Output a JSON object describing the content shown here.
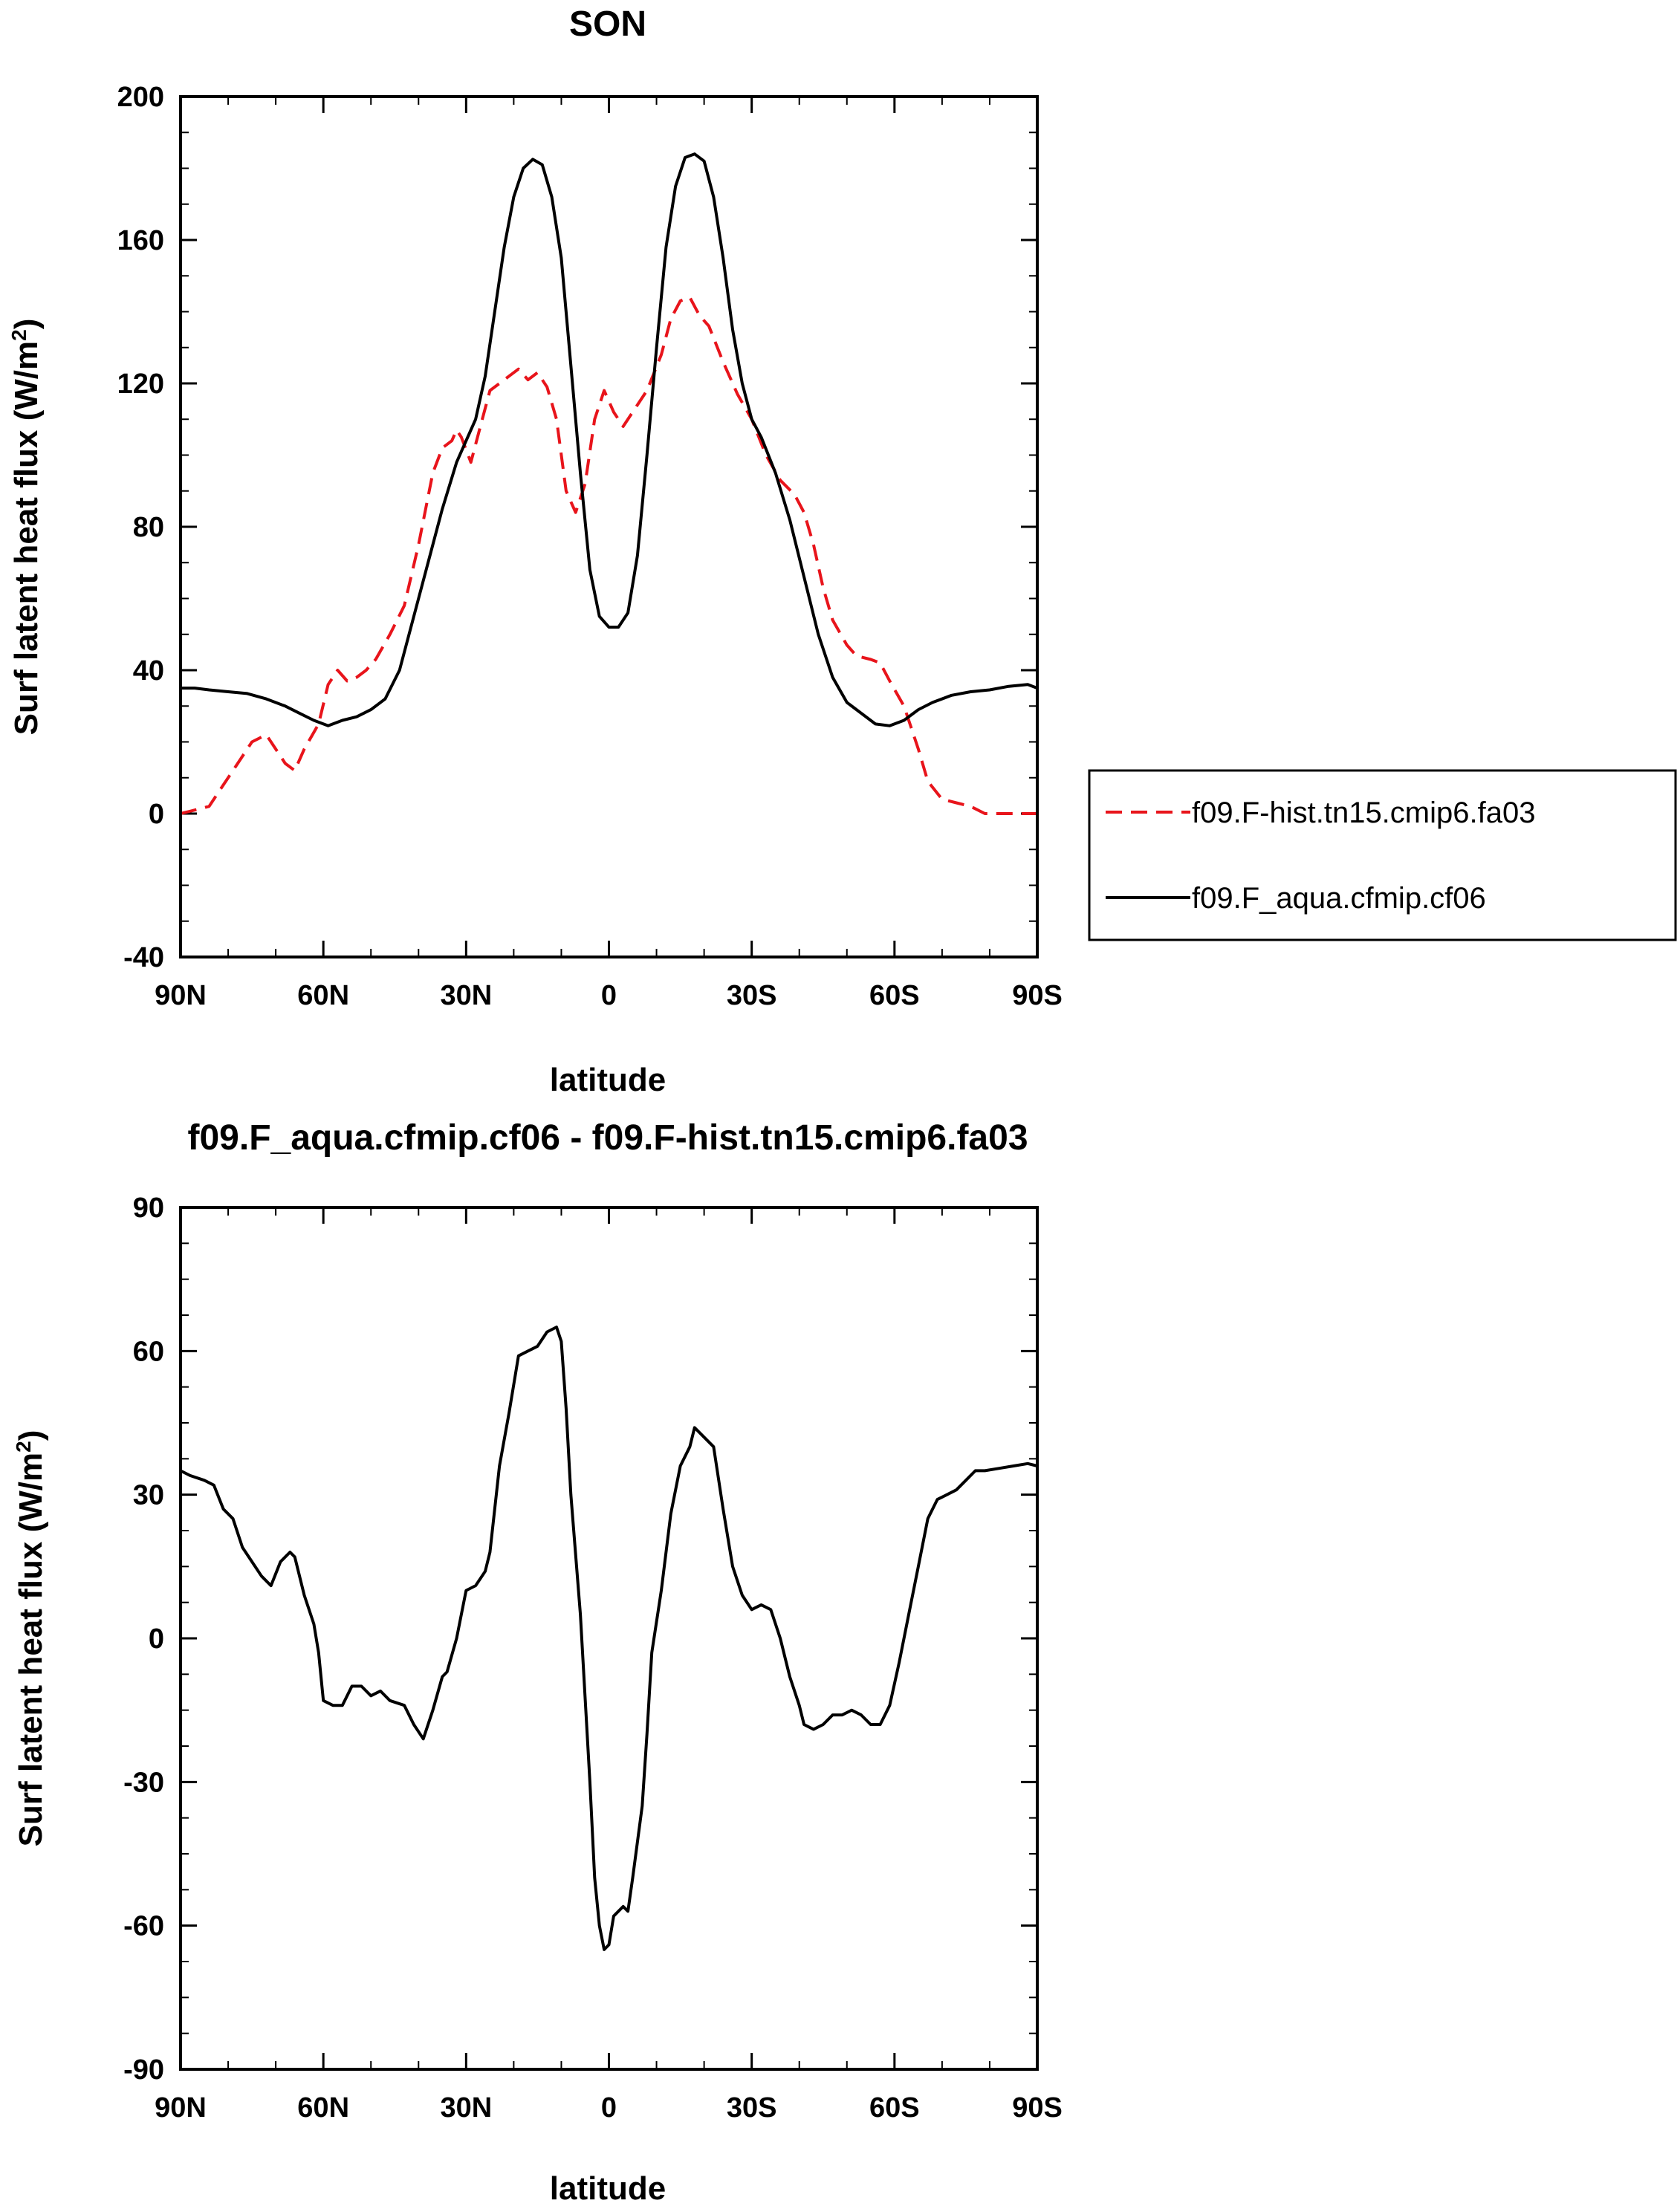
{
  "chart_data": [
    {
      "type": "line",
      "title": "SON",
      "xlabel": "latitude",
      "ylabel": "Surf latent heat flux (W/m",
      "ylabel_sup": "2",
      "ylabel_close": ")",
      "xlim": [
        90,
        -90
      ],
      "ylim": [
        -40,
        200
      ],
      "x_ticks": [
        90,
        60,
        30,
        0,
        -30,
        -60,
        -90
      ],
      "x_tick_labels": [
        "90N",
        "60N",
        "30N",
        "0",
        "30S",
        "60S",
        "90S"
      ],
      "y_ticks": [
        -40,
        0,
        40,
        80,
        120,
        160,
        200
      ],
      "y_tick_labels": [
        "-40",
        "0",
        "40",
        "80",
        "120",
        "160",
        "200"
      ],
      "legend_position": "right",
      "series": [
        {
          "name": "f09.F-hist.tn15.cmip6.fa03",
          "color": "#e8141b",
          "dash": "dashed",
          "points": [
            [
              90,
              0
            ],
            [
              87,
              1
            ],
            [
              84,
              2
            ],
            [
              81,
              8
            ],
            [
              78,
              14
            ],
            [
              75,
              20
            ],
            [
              72,
              22
            ],
            [
              70,
              18
            ],
            [
              68,
              14
            ],
            [
              66,
              12
            ],
            [
              64,
              18
            ],
            [
              61,
              25
            ],
            [
              59,
              36
            ],
            [
              57,
              40
            ],
            [
              55,
              37
            ],
            [
              53,
              38
            ],
            [
              51,
              40
            ],
            [
              49,
              43
            ],
            [
              46,
              50
            ],
            [
              43,
              58
            ],
            [
              40,
              75
            ],
            [
              37,
              95
            ],
            [
              35,
              102
            ],
            [
              33,
              104
            ],
            [
              32,
              107
            ],
            [
              31,
              105
            ],
            [
              29,
              98
            ],
            [
              27,
              108
            ],
            [
              25,
              118
            ],
            [
              23,
              120
            ],
            [
              21,
              122
            ],
            [
              19,
              124
            ],
            [
              17,
              121
            ],
            [
              15,
              123
            ],
            [
              13,
              119
            ],
            [
              11,
              110
            ],
            [
              9,
              90
            ],
            [
              7,
              84
            ],
            [
              5,
              92
            ],
            [
              3,
              110
            ],
            [
              1,
              118
            ],
            [
              -1,
              112
            ],
            [
              -3,
              108
            ],
            [
              -5,
              112
            ],
            [
              -8,
              118
            ],
            [
              -11,
              128
            ],
            [
              -13,
              138
            ],
            [
              -15,
              143
            ],
            [
              -17,
              144
            ],
            [
              -19,
              139
            ],
            [
              -21,
              136
            ],
            [
              -24,
              126
            ],
            [
              -27,
              117
            ],
            [
              -30,
              110
            ],
            [
              -33,
              100
            ],
            [
              -36,
              93
            ],
            [
              -39,
              89
            ],
            [
              -41,
              84
            ],
            [
              -43,
              75
            ],
            [
              -45,
              63
            ],
            [
              -47,
              54
            ],
            [
              -50,
              47
            ],
            [
              -52,
              44
            ],
            [
              -55,
              43
            ],
            [
              -57,
              42
            ],
            [
              -59,
              37
            ],
            [
              -62,
              30
            ],
            [
              -65,
              18
            ],
            [
              -67,
              9
            ],
            [
              -70,
              4
            ],
            [
              -73,
              3
            ],
            [
              -76,
              2
            ],
            [
              -79,
              0
            ],
            [
              -82,
              0
            ],
            [
              -85,
              0
            ],
            [
              -88,
              0
            ],
            [
              -90,
              0
            ]
          ]
        },
        {
          "name": "f09.F_aqua.cfmip.cf06",
          "color": "#000000",
          "dash": "solid",
          "points": [
            [
              90,
              35
            ],
            [
              87,
              35
            ],
            [
              84,
              34.5
            ],
            [
              80,
              34
            ],
            [
              76,
              33.5
            ],
            [
              72,
              32
            ],
            [
              68,
              30
            ],
            [
              65,
              28
            ],
            [
              62,
              26
            ],
            [
              59,
              24.5
            ],
            [
              56,
              26
            ],
            [
              53,
              27
            ],
            [
              50,
              29
            ],
            [
              47,
              32
            ],
            [
              44,
              40
            ],
            [
              41,
              55
            ],
            [
              38,
              70
            ],
            [
              35,
              85
            ],
            [
              32,
              98
            ],
            [
              30,
              104
            ],
            [
              28,
              110
            ],
            [
              26,
              122
            ],
            [
              24,
              140
            ],
            [
              22,
              158
            ],
            [
              20,
              172
            ],
            [
              18,
              180
            ],
            [
              16,
              182.5
            ],
            [
              14,
              181
            ],
            [
              12,
              172
            ],
            [
              10,
              155
            ],
            [
              8,
              125
            ],
            [
              6,
              95
            ],
            [
              4,
              68
            ],
            [
              2,
              55
            ],
            [
              0,
              52
            ],
            [
              -2,
              52
            ],
            [
              -4,
              56
            ],
            [
              -6,
              72
            ],
            [
              -8,
              100
            ],
            [
              -10,
              130
            ],
            [
              -12,
              158
            ],
            [
              -14,
              175
            ],
            [
              -16,
              183
            ],
            [
              -18,
              184
            ],
            [
              -20,
              182
            ],
            [
              -22,
              172
            ],
            [
              -24,
              155
            ],
            [
              -26,
              135
            ],
            [
              -28,
              120
            ],
            [
              -30,
              110
            ],
            [
              -32,
              105
            ],
            [
              -35,
              95
            ],
            [
              -38,
              82
            ],
            [
              -41,
              66
            ],
            [
              -44,
              50
            ],
            [
              -47,
              38
            ],
            [
              -50,
              31
            ],
            [
              -53,
              28
            ],
            [
              -56,
              25
            ],
            [
              -59,
              24.5
            ],
            [
              -62,
              26
            ],
            [
              -65,
              29
            ],
            [
              -68,
              31
            ],
            [
              -72,
              33
            ],
            [
              -76,
              34
            ],
            [
              -80,
              34.5
            ],
            [
              -84,
              35.5
            ],
            [
              -88,
              36
            ],
            [
              -90,
              35
            ]
          ]
        }
      ]
    },
    {
      "type": "line",
      "title": "f09.F_aqua.cfmip.cf06 - f09.F-hist.tn15.cmip6.fa03",
      "xlabel": "latitude",
      "ylabel": "Surf latent heat flux (W/m",
      "ylabel_sup": "2",
      "ylabel_close": ")",
      "xlim": [
        90,
        -90
      ],
      "ylim": [
        -90,
        90
      ],
      "x_ticks": [
        90,
        60,
        30,
        0,
        -30,
        -60,
        -90
      ],
      "x_tick_labels": [
        "90N",
        "60N",
        "30N",
        "0",
        "30S",
        "60S",
        "90S"
      ],
      "y_ticks": [
        -90,
        -60,
        -30,
        0,
        30,
        60,
        90
      ],
      "y_tick_labels": [
        "-90",
        "-60",
        "-30",
        "0",
        "30",
        "60",
        "90"
      ],
      "series": [
        {
          "color": "#000000",
          "dash": "solid",
          "points": [
            [
              90,
              35
            ],
            [
              88,
              34
            ],
            [
              85,
              33
            ],
            [
              83,
              32
            ],
            [
              81,
              27
            ],
            [
              79,
              25
            ],
            [
              77,
              19
            ],
            [
              75,
              16
            ],
            [
              73,
              13
            ],
            [
              71,
              11
            ],
            [
              69,
              16
            ],
            [
              67,
              18
            ],
            [
              66,
              17
            ],
            [
              64,
              9
            ],
            [
              62,
              3
            ],
            [
              61,
              -3
            ],
            [
              60,
              -13
            ],
            [
              58,
              -14
            ],
            [
              56,
              -14
            ],
            [
              54,
              -10
            ],
            [
              52,
              -10
            ],
            [
              50,
              -12
            ],
            [
              48,
              -11
            ],
            [
              46,
              -13
            ],
            [
              43,
              -14
            ],
            [
              41,
              -18
            ],
            [
              39,
              -21
            ],
            [
              37,
              -15
            ],
            [
              35,
              -8
            ],
            [
              34,
              -7
            ],
            [
              32,
              0
            ],
            [
              30,
              10
            ],
            [
              28,
              11
            ],
            [
              26,
              14
            ],
            [
              25,
              18
            ],
            [
              23,
              36
            ],
            [
              21,
              47
            ],
            [
              19,
              59
            ],
            [
              17,
              60
            ],
            [
              15,
              61
            ],
            [
              13,
              64
            ],
            [
              11,
              65
            ],
            [
              10,
              62
            ],
            [
              9,
              48
            ],
            [
              8,
              30
            ],
            [
              6,
              5
            ],
            [
              4,
              -30
            ],
            [
              3,
              -50
            ],
            [
              2,
              -60
            ],
            [
              1,
              -65
            ],
            [
              0,
              -64
            ],
            [
              -1,
              -58
            ],
            [
              -3,
              -56
            ],
            [
              -4,
              -57
            ],
            [
              -5,
              -50
            ],
            [
              -7,
              -35
            ],
            [
              -8,
              -20
            ],
            [
              -9,
              -3
            ],
            [
              -11,
              10
            ],
            [
              -13,
              26
            ],
            [
              -15,
              36
            ],
            [
              -17,
              40
            ],
            [
              -18,
              44
            ],
            [
              -20,
              42
            ],
            [
              -22,
              40
            ],
            [
              -24,
              27
            ],
            [
              -26,
              15
            ],
            [
              -28,
              9
            ],
            [
              -30,
              6
            ],
            [
              -32,
              7
            ],
            [
              -34,
              6
            ],
            [
              -36,
              0
            ],
            [
              -38,
              -8
            ],
            [
              -40,
              -14
            ],
            [
              -41,
              -18
            ],
            [
              -43,
              -19
            ],
            [
              -45,
              -18
            ],
            [
              -47,
              -16
            ],
            [
              -49,
              -16
            ],
            [
              -51,
              -15
            ],
            [
              -53,
              -16
            ],
            [
              -55,
              -18
            ],
            [
              -57,
              -18
            ],
            [
              -59,
              -14
            ],
            [
              -61,
              -5
            ],
            [
              -63,
              5
            ],
            [
              -65,
              15
            ],
            [
              -67,
              25
            ],
            [
              -69,
              29
            ],
            [
              -71,
              30
            ],
            [
              -73,
              31
            ],
            [
              -75,
              33
            ],
            [
              -77,
              35
            ],
            [
              -79,
              35
            ],
            [
              -82,
              35.5
            ],
            [
              -85,
              36
            ],
            [
              -88,
              36.5
            ],
            [
              -90,
              36
            ]
          ]
        }
      ]
    }
  ]
}
